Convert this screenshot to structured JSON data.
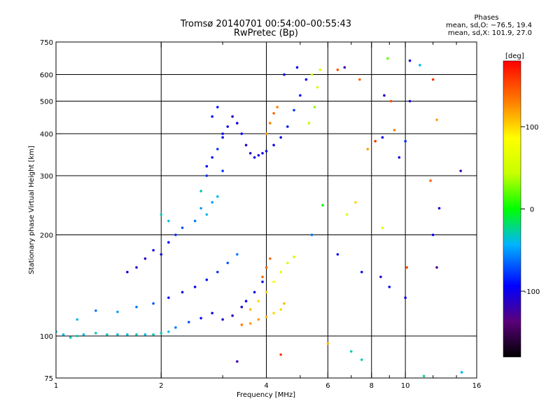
{
  "chart_data": {
    "type": "scatter",
    "title": "Tromsø 20140701 00:54:00–00:55:43",
    "subtitle": "RwPretec (Bp)",
    "xlabel": "Frequency [MHz]",
    "ylabel": "Stationary phase Virtual Height [km]",
    "x_scale": "log",
    "y_scale": "log",
    "xlim": [
      1,
      16
    ],
    "ylim": [
      75,
      750
    ],
    "x_ticks": [
      1,
      2,
      4,
      6,
      8,
      10,
      16
    ],
    "x_minor_ticks": [
      3,
      5,
      7,
      9,
      12,
      14
    ],
    "y_ticks": [
      75,
      100,
      200,
      300,
      400,
      500,
      600,
      750
    ],
    "grid_x": [
      2,
      4,
      6,
      8,
      10
    ],
    "grid_y": [
      100,
      200,
      300,
      400,
      500,
      600
    ],
    "legend": {
      "title": "Phases",
      "lines": [
        "mean, sd,O: −76.5, 19.4",
        "mean, sd,X: 101.9, 27.0"
      ],
      "placement": "top-right"
    },
    "colorbar": {
      "label": "[deg]",
      "range": [
        -180,
        180
      ],
      "ticks": [
        100,
        0,
        -100
      ]
    },
    "series": [
      {
        "values": [
          [
            1.0,
            103,
            -40
          ],
          [
            1.05,
            101,
            -40
          ],
          [
            1.1,
            99,
            -30
          ],
          [
            1.15,
            100,
            -30
          ],
          [
            1.2,
            101,
            -40
          ],
          [
            1.3,
            102,
            -30
          ],
          [
            1.4,
            101,
            -30
          ],
          [
            1.5,
            101,
            -35
          ],
          [
            1.6,
            101,
            -40
          ],
          [
            1.7,
            101,
            -30
          ],
          [
            1.8,
            101,
            -40
          ],
          [
            1.9,
            101,
            -30
          ],
          [
            2.0,
            102,
            -30
          ],
          [
            2.1,
            103,
            -40
          ],
          [
            2.2,
            106,
            -60
          ],
          [
            2.4,
            110,
            -70
          ],
          [
            2.6,
            113,
            -90
          ],
          [
            2.8,
            117,
            -100
          ],
          [
            1.15,
            112,
            -40
          ],
          [
            1.3,
            119,
            -60
          ],
          [
            1.5,
            118,
            -50
          ],
          [
            1.7,
            122,
            -60
          ],
          [
            1.9,
            125,
            -70
          ],
          [
            2.1,
            130,
            -90
          ],
          [
            2.3,
            135,
            -100
          ],
          [
            2.5,
            140,
            -100
          ],
          [
            2.7,
            147,
            -90
          ],
          [
            2.9,
            155,
            -80
          ],
          [
            3.1,
            165,
            -70
          ],
          [
            3.3,
            175,
            -60
          ],
          [
            1.6,
            155,
            -100
          ],
          [
            1.7,
            160,
            -110
          ],
          [
            1.8,
            170,
            -110
          ],
          [
            1.9,
            180,
            -100
          ],
          [
            2.0,
            175,
            -100
          ],
          [
            2.1,
            190,
            -90
          ],
          [
            2.2,
            200,
            -80
          ],
          [
            2.3,
            210,
            -70
          ],
          [
            2.5,
            220,
            -60
          ],
          [
            2.6,
            240,
            -50
          ],
          [
            2.7,
            230,
            -40
          ],
          [
            2.8,
            250,
            -50
          ],
          [
            2.6,
            270,
            -30
          ],
          [
            2.9,
            260,
            -40
          ],
          [
            2.0,
            230,
            -30
          ],
          [
            2.1,
            220,
            -40
          ],
          [
            2.7,
            320,
            -100
          ],
          [
            2.8,
            340,
            -90
          ],
          [
            2.9,
            360,
            -80
          ],
          [
            3.0,
            390,
            -100
          ],
          [
            3.1,
            420,
            -100
          ],
          [
            3.2,
            450,
            -110
          ],
          [
            3.3,
            430,
            -100
          ],
          [
            3.4,
            400,
            -100
          ],
          [
            3.5,
            370,
            -110
          ],
          [
            3.6,
            350,
            -110
          ],
          [
            3.7,
            340,
            -100
          ],
          [
            3.8,
            345,
            -100
          ],
          [
            3.9,
            350,
            -100
          ],
          [
            4.0,
            355,
            -100
          ],
          [
            4.2,
            370,
            -100
          ],
          [
            4.4,
            390,
            -100
          ],
          [
            4.6,
            420,
            -90
          ],
          [
            4.8,
            470,
            -80
          ],
          [
            5.0,
            520,
            -90
          ],
          [
            5.2,
            580,
            -100
          ],
          [
            4.9,
            630,
            -100
          ],
          [
            4.5,
            600,
            -100
          ],
          [
            3.0,
            310,
            -80
          ],
          [
            2.7,
            300,
            -80
          ],
          [
            2.8,
            450,
            -90
          ],
          [
            2.9,
            480,
            -90
          ],
          [
            3.0,
            400,
            -100
          ],
          [
            5.3,
            430,
            40
          ],
          [
            5.5,
            480,
            30
          ],
          [
            5.6,
            550,
            50
          ],
          [
            5.7,
            620,
            60
          ],
          [
            5.4,
            600,
            50
          ],
          [
            4.0,
            400,
            120
          ],
          [
            4.1,
            430,
            130
          ],
          [
            4.2,
            460,
            140
          ],
          [
            4.3,
            480,
            130
          ],
          [
            3.4,
            108,
            130
          ],
          [
            3.6,
            109,
            120
          ],
          [
            3.8,
            112,
            120
          ],
          [
            4.0,
            114,
            110
          ],
          [
            4.2,
            117,
            100
          ],
          [
            4.4,
            120,
            100
          ],
          [
            4.5,
            125,
            110
          ],
          [
            3.6,
            120,
            110
          ],
          [
            3.8,
            127,
            100
          ],
          [
            4.0,
            135,
            100
          ],
          [
            4.2,
            145,
            80
          ],
          [
            4.4,
            155,
            70
          ],
          [
            4.6,
            165,
            60
          ],
          [
            4.8,
            172,
            50
          ],
          [
            3.9,
            150,
            140
          ],
          [
            4.0,
            160,
            140
          ],
          [
            4.1,
            170,
            140
          ],
          [
            3.0,
            112,
            -110
          ],
          [
            3.2,
            115,
            -110
          ],
          [
            3.4,
            122,
            -110
          ],
          [
            3.5,
            127,
            -100
          ],
          [
            3.7,
            135,
            -100
          ],
          [
            3.9,
            145,
            -100
          ],
          [
            6.4,
            175,
            -100
          ],
          [
            7.5,
            155,
            -90
          ],
          [
            8.5,
            150,
            -110
          ],
          [
            9.0,
            140,
            -90
          ],
          [
            10.0,
            130,
            -100
          ],
          [
            5.4,
            200,
            -60
          ],
          [
            5.8,
            245,
            0
          ],
          [
            6.0,
            95,
            110
          ],
          [
            6.8,
            230,
            60
          ],
          [
            7.2,
            250,
            100
          ],
          [
            7.8,
            360,
            120
          ],
          [
            8.2,
            380,
            160
          ],
          [
            8.6,
            390,
            -100
          ],
          [
            9.3,
            410,
            130
          ],
          [
            9.6,
            340,
            -100
          ],
          [
            10.0,
            380,
            -80
          ],
          [
            10.3,
            500,
            -100
          ],
          [
            12.0,
            580,
            160
          ],
          [
            12.5,
            240,
            -100
          ],
          [
            14.4,
            310,
            -120
          ],
          [
            12.3,
            440,
            120
          ],
          [
            11.8,
            290,
            140
          ],
          [
            11.0,
            640,
            -40
          ],
          [
            10.3,
            660,
            -100
          ],
          [
            8.9,
            670,
            20
          ],
          [
            6.7,
            630,
            -120
          ],
          [
            6.4,
            620,
            150
          ],
          [
            7.4,
            580,
            140
          ],
          [
            8.7,
            520,
            -110
          ],
          [
            9.1,
            500,
            150
          ],
          [
            10.1,
            160,
            150
          ],
          [
            8.6,
            210,
            60
          ],
          [
            12.0,
            200,
            -100
          ],
          [
            12.3,
            160,
            -130
          ],
          [
            7.0,
            90,
            -30
          ],
          [
            14.5,
            78,
            -40
          ],
          [
            11.3,
            76,
            -20
          ],
          [
            7.5,
            85,
            -30
          ],
          [
            4.4,
            88,
            160
          ],
          [
            3.3,
            84,
            -120
          ]
        ]
      }
    ]
  }
}
